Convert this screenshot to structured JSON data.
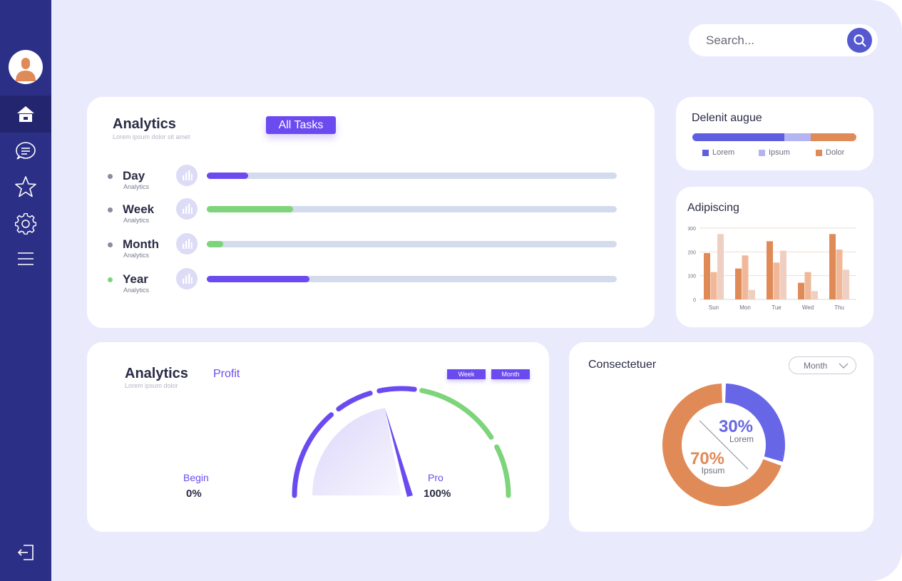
{
  "sidebar": {
    "items": [
      {
        "icon": "home-icon",
        "active": true
      },
      {
        "icon": "chat-icon",
        "active": false
      },
      {
        "icon": "star-icon",
        "active": false
      },
      {
        "icon": "gear-icon",
        "active": false
      },
      {
        "icon": "menu-icon",
        "active": false
      }
    ],
    "logout_icon": "logout-icon"
  },
  "search": {
    "placeholder": "Search..."
  },
  "analytics": {
    "title": "Analytics",
    "subtitle": "Lorem ipsum dolor sit amet",
    "filter_label": "All Tasks",
    "rows": [
      {
        "label": "Day",
        "sub": "Analytics",
        "progress": 0.1,
        "color": "#6b4bf0",
        "dot": "#8a8c9d"
      },
      {
        "label": "Week",
        "sub": "Analytics",
        "progress": 0.21,
        "color": "#7dd47a",
        "dot": "#8a8c9d"
      },
      {
        "label": "Month",
        "sub": "Analytics",
        "progress": 0.04,
        "color": "#7dd47a",
        "dot": "#8a8c9d"
      },
      {
        "label": "Year",
        "sub": "Analytics",
        "progress": 0.25,
        "color": "#6b4bf0",
        "dot": "#7dd47a"
      }
    ]
  },
  "delenit": {
    "title": "Delenit augue",
    "segments": [
      {
        "label": "Lorem",
        "share": 0.56,
        "color": "#5e5ee0"
      },
      {
        "label": "Ipsum",
        "share": 0.16,
        "color": "#b5b4f2"
      },
      {
        "label": "Dolor",
        "share": 0.28,
        "color": "#e08a58"
      }
    ]
  },
  "adipiscing": {
    "title": "Adipiscing",
    "chart_data": {
      "type": "bar",
      "categories": [
        "Sun",
        "Mon",
        "Tue",
        "Wed",
        "Thu"
      ],
      "series": [
        {
          "values": [
            195,
            130,
            245,
            70,
            275
          ],
          "color": "#e08a58"
        },
        {
          "values": [
            115,
            185,
            155,
            115,
            210
          ],
          "color": "#f0b899"
        },
        {
          "values": [
            275,
            40,
            205,
            35,
            125
          ],
          "color": "#efcfc2"
        }
      ],
      "ylim": [
        0,
        300
      ],
      "yticks": [
        "0",
        "100",
        "200",
        "300"
      ],
      "grid": true
    }
  },
  "gauge": {
    "title": "Analytics",
    "subtitle": "Lorem ipsum dolor",
    "label": "Profit",
    "toggles": [
      "Week",
      "Month"
    ],
    "begin_label": "Begin",
    "begin_value": "0%",
    "end_label": "Pro",
    "end_value": "100%",
    "value": 0.44,
    "colors": {
      "purple": "#6b4bf0",
      "green": "#7dd47a"
    }
  },
  "donut": {
    "title": "Consectetuer",
    "period": "Month",
    "chart_data": {
      "type": "pie",
      "slices": [
        {
          "label": "Lorem",
          "value": 30,
          "display": "30%",
          "color": "#6766e6"
        },
        {
          "label": "Ipsum",
          "value": 70,
          "display": "70%",
          "color": "#e08a58"
        }
      ]
    }
  }
}
